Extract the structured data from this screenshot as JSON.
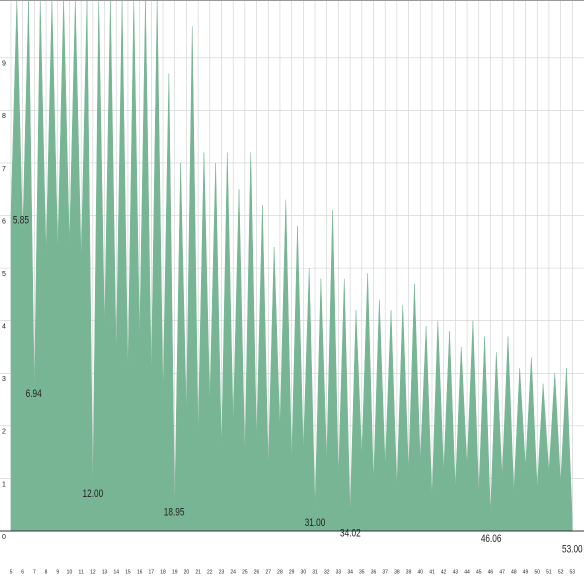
{
  "chart_data": {
    "type": "area",
    "color": "#77b594",
    "grid": true,
    "xlim": [
      4.06,
      54
    ],
    "ylim": [
      0,
      10.1
    ],
    "yticks": [
      0,
      1,
      2,
      3,
      4,
      5,
      6,
      7,
      8,
      9
    ],
    "xticks": [
      5,
      6,
      7,
      8,
      9,
      10,
      11,
      12,
      13,
      14,
      15,
      16,
      17,
      18,
      19,
      20,
      21,
      22,
      23,
      24,
      25,
      26,
      27,
      28,
      29,
      30,
      31,
      32,
      33,
      34,
      35,
      36,
      37,
      38,
      39,
      40,
      41,
      42,
      43,
      44,
      45,
      46,
      47,
      48,
      49,
      50,
      51,
      52,
      53
    ],
    "series": [
      {
        "x": [
          5,
          5.5,
          6,
          6.5,
          7,
          7.5,
          8,
          8.5,
          9,
          9.5,
          10,
          10.5,
          11,
          11.5,
          12,
          12.5,
          13,
          13.5,
          14,
          14.5,
          15,
          15.5,
          16,
          16.5,
          17,
          17.5,
          18,
          18.5,
          19,
          19.5,
          20,
          20.5,
          21,
          21.5,
          22,
          22.5,
          23,
          23.5,
          24,
          24.5,
          25,
          25.5,
          26,
          26.5,
          27,
          27.5,
          28,
          28.5,
          29,
          29.5,
          30,
          30.5,
          31,
          31.5,
          32,
          32.5,
          33,
          33.5,
          34,
          34.5,
          35,
          35.5,
          36,
          36.5,
          37,
          37.5,
          38,
          38.5,
          39,
          39.5,
          40,
          40.5,
          41,
          41.5,
          42,
          42.5,
          43,
          43.5,
          44,
          44.5,
          45,
          45.5,
          46,
          46.5,
          47,
          47.5,
          48,
          48.5,
          49,
          49.5,
          50,
          50.5,
          51,
          51.5,
          52,
          52.5,
          53
        ],
        "values": [
          6.0,
          10.1,
          5.6,
          10.1,
          2.6,
          10.1,
          5.2,
          10.1,
          5.3,
          10.1,
          5.4,
          10.1,
          5.1,
          10.1,
          0.7,
          10.1,
          3.8,
          10.1,
          3.3,
          10.1,
          2.9,
          10.1,
          3.6,
          10.1,
          2.9,
          10.1,
          2.5,
          8.7,
          0.4,
          7.0,
          2.2,
          9.6,
          1.8,
          7.2,
          2.4,
          7.0,
          1.5,
          7.2,
          2.0,
          6.5,
          1.4,
          7.2,
          1.7,
          6.2,
          1.2,
          5.4,
          1.9,
          6.3,
          1.3,
          5.8,
          1.5,
          5.0,
          0.4,
          4.8,
          1.3,
          6.1,
          1.0,
          4.8,
          0.3,
          4.2,
          1.4,
          4.9,
          0.9,
          4.4,
          1.2,
          4.2,
          0.8,
          4.3,
          1.1,
          4.7,
          1.3,
          3.9,
          0.6,
          4.0,
          1.1,
          3.8,
          0.8,
          3.5,
          1.2,
          4.0,
          0.7,
          3.7,
          0.3,
          3.4,
          1.0,
          3.7,
          0.7,
          3.1,
          1.2,
          3.3,
          0.8,
          2.8,
          1.1,
          3.0,
          0.9,
          3.1,
          0.2
        ]
      }
    ],
    "annotations": [
      {
        "text": "5.85",
        "x": 5.85,
        "y": 5.9
      },
      {
        "text": "6.94",
        "x": 6.94,
        "y": 2.6
      },
      {
        "text": "12.00",
        "x": 12.0,
        "y": 0.7
      },
      {
        "text": "18.95",
        "x": 18.95,
        "y": 0.35
      },
      {
        "text": "31.00",
        "x": 31.0,
        "y": 0.15
      },
      {
        "text": "34.02",
        "x": 34.02,
        "y": -0.05
      },
      {
        "text": "46.06",
        "x": 46.06,
        "y": -0.15
      },
      {
        "text": "53.00",
        "x": 53.0,
        "y": -0.35
      }
    ]
  }
}
